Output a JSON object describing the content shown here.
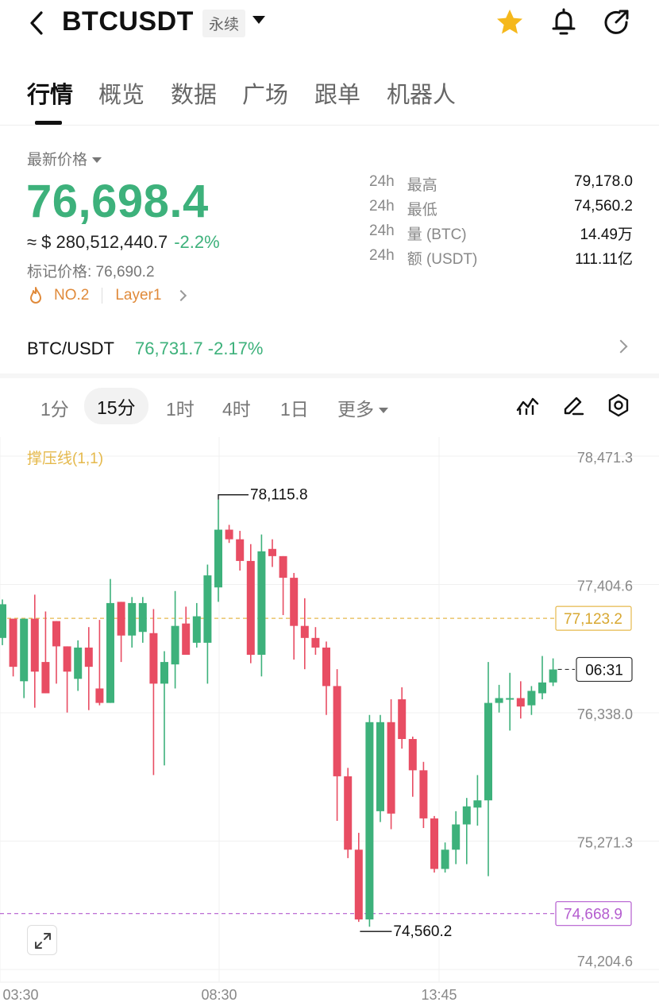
{
  "header": {
    "symbol": "BTCUSDT",
    "contract_type": "永续",
    "icons": [
      "back-icon",
      "star-icon",
      "bell-icon",
      "share-icon",
      "chevron-down-icon"
    ],
    "favorite_color": "#f5b81c"
  },
  "tabs": [
    {
      "label": "行情",
      "active": true
    },
    {
      "label": "概览",
      "active": false
    },
    {
      "label": "数据",
      "active": false
    },
    {
      "label": "广场",
      "active": false
    },
    {
      "label": "跟单",
      "active": false
    },
    {
      "label": "机器人",
      "active": false
    }
  ],
  "price": {
    "label": "最新价格",
    "last": "76,698.4",
    "approx": "≈ $ 280,512,440.7",
    "change": "-2.2%",
    "mark": "标记价格: 76,690.2",
    "rank_tag": "NO.2",
    "category_tag": "Layer1",
    "up_color": "#3db17b",
    "down_color": "#e84d63"
  },
  "stats": [
    {
      "period": "24h",
      "key": "最高",
      "value": "79,178.0"
    },
    {
      "period": "24h",
      "key": "最低",
      "value": "74,560.2"
    },
    {
      "period": "24h",
      "key": "量 (BTC)",
      "value": "14.49万"
    },
    {
      "period": "24h",
      "key": "额 (USDT)",
      "value": "111.11亿"
    }
  ],
  "spot": {
    "pair": "BTC/USDT",
    "price": "76,731.7",
    "change": "-2.17%"
  },
  "timeframes": [
    {
      "label": "1分",
      "active": false
    },
    {
      "label": "15分",
      "active": true
    },
    {
      "label": "1时",
      "active": false
    },
    {
      "label": "4时",
      "active": false
    },
    {
      "label": "1日",
      "active": false
    },
    {
      "label": "更多",
      "active": false
    }
  ],
  "chart": {
    "indicator_label": "撑压线(1,1)",
    "countdown": "06:31",
    "resistance_label": "77,123.2",
    "support_label": "74,668.9",
    "high_marker": "78,115.8",
    "low_marker": "74,560.2",
    "resistance_color": "#e5b94c",
    "support_color": "#b45ccf"
  },
  "chart_data": {
    "type": "candlestick",
    "title": "",
    "ylim": [
      74204.6,
      78471.3
    ],
    "y_ticks": [
      "78,471.3",
      "77,404.6",
      "76,338.0",
      "75,271.3",
      "74,204.6"
    ],
    "x_ticks": [
      "03:30",
      "08:30",
      "13:45"
    ],
    "resistance": 77123.2,
    "support": 74668.9,
    "current": 76698.4,
    "candles": [
      {
        "o": 76960,
        "h": 77280,
        "l": 76900,
        "c": 77240
      },
      {
        "o": 77120,
        "h": 77120,
        "l": 76640,
        "c": 76720
      },
      {
        "o": 76600,
        "h": 77120,
        "l": 76460,
        "c": 77120
      },
      {
        "o": 77120,
        "h": 77320,
        "l": 76380,
        "c": 76680
      },
      {
        "o": 76760,
        "h": 77180,
        "l": 76500,
        "c": 76500
      },
      {
        "o": 77100,
        "h": 77100,
        "l": 76580,
        "c": 76890
      },
      {
        "o": 76890,
        "h": 76890,
        "l": 76340,
        "c": 76680
      },
      {
        "o": 76620,
        "h": 76940,
        "l": 76520,
        "c": 76880
      },
      {
        "o": 76880,
        "h": 77050,
        "l": 76360,
        "c": 76720
      },
      {
        "o": 76540,
        "h": 77110,
        "l": 76400,
        "c": 76420
      },
      {
        "o": 76420,
        "h": 77450,
        "l": 76420,
        "c": 77250
      },
      {
        "o": 77260,
        "h": 77260,
        "l": 76760,
        "c": 76980
      },
      {
        "o": 76980,
        "h": 77300,
        "l": 76880,
        "c": 77250
      },
      {
        "o": 77010,
        "h": 77300,
        "l": 76920,
        "c": 77250
      },
      {
        "o": 77000,
        "h": 77200,
        "l": 75820,
        "c": 76580
      },
      {
        "o": 76580,
        "h": 76850,
        "l": 75900,
        "c": 76760
      },
      {
        "o": 76740,
        "h": 77350,
        "l": 76540,
        "c": 77060
      },
      {
        "o": 77080,
        "h": 77220,
        "l": 76840,
        "c": 76820
      },
      {
        "o": 76920,
        "h": 77250,
        "l": 76880,
        "c": 77140
      },
      {
        "o": 76920,
        "h": 77570,
        "l": 76580,
        "c": 77480
      },
      {
        "o": 77380,
        "h": 78110,
        "l": 77260,
        "c": 77860
      },
      {
        "o": 77860,
        "h": 77900,
        "l": 77750,
        "c": 77780
      },
      {
        "o": 77780,
        "h": 77850,
        "l": 77520,
        "c": 77600
      },
      {
        "o": 77600,
        "h": 77740,
        "l": 76750,
        "c": 76820
      },
      {
        "o": 76820,
        "h": 77820,
        "l": 76640,
        "c": 77680
      },
      {
        "o": 77700,
        "h": 77780,
        "l": 77550,
        "c": 77640
      },
      {
        "o": 77640,
        "h": 77640,
        "l": 77150,
        "c": 77460
      },
      {
        "o": 77460,
        "h": 77500,
        "l": 76780,
        "c": 77060
      },
      {
        "o": 77060,
        "h": 77290,
        "l": 76700,
        "c": 76960
      },
      {
        "o": 76960,
        "h": 77050,
        "l": 76820,
        "c": 76880
      },
      {
        "o": 76880,
        "h": 76930,
        "l": 76320,
        "c": 76560
      },
      {
        "o": 76560,
        "h": 76700,
        "l": 75440,
        "c": 75810
      },
      {
        "o": 75810,
        "h": 75880,
        "l": 75130,
        "c": 75200
      },
      {
        "o": 75200,
        "h": 75340,
        "l": 74600,
        "c": 74620
      },
      {
        "o": 74620,
        "h": 76320,
        "l": 74560,
        "c": 76260
      },
      {
        "o": 75520,
        "h": 76320,
        "l": 75430,
        "c": 76260
      },
      {
        "o": 76260,
        "h": 76450,
        "l": 75370,
        "c": 75500
      },
      {
        "o": 76450,
        "h": 76550,
        "l": 76040,
        "c": 76120
      },
      {
        "o": 76120,
        "h": 76140,
        "l": 75640,
        "c": 75860
      },
      {
        "o": 75860,
        "h": 75930,
        "l": 75380,
        "c": 75460
      },
      {
        "o": 75460,
        "h": 75480,
        "l": 75010,
        "c": 75040
      },
      {
        "o": 75040,
        "h": 75260,
        "l": 75010,
        "c": 75200
      },
      {
        "o": 75200,
        "h": 75520,
        "l": 75080,
        "c": 75410
      },
      {
        "o": 75410,
        "h": 75630,
        "l": 75080,
        "c": 75560
      },
      {
        "o": 75550,
        "h": 75820,
        "l": 75400,
        "c": 75610
      },
      {
        "o": 75610,
        "h": 76760,
        "l": 74980,
        "c": 76420
      },
      {
        "o": 76420,
        "h": 76570,
        "l": 76340,
        "c": 76460
      },
      {
        "o": 76460,
        "h": 76670,
        "l": 76190,
        "c": 76460
      },
      {
        "o": 76460,
        "h": 76600,
        "l": 76290,
        "c": 76390
      },
      {
        "o": 76400,
        "h": 76560,
        "l": 76320,
        "c": 76520
      },
      {
        "o": 76500,
        "h": 76810,
        "l": 76450,
        "c": 76590
      },
      {
        "o": 76590,
        "h": 76790,
        "l": 76560,
        "c": 76698
      }
    ]
  }
}
